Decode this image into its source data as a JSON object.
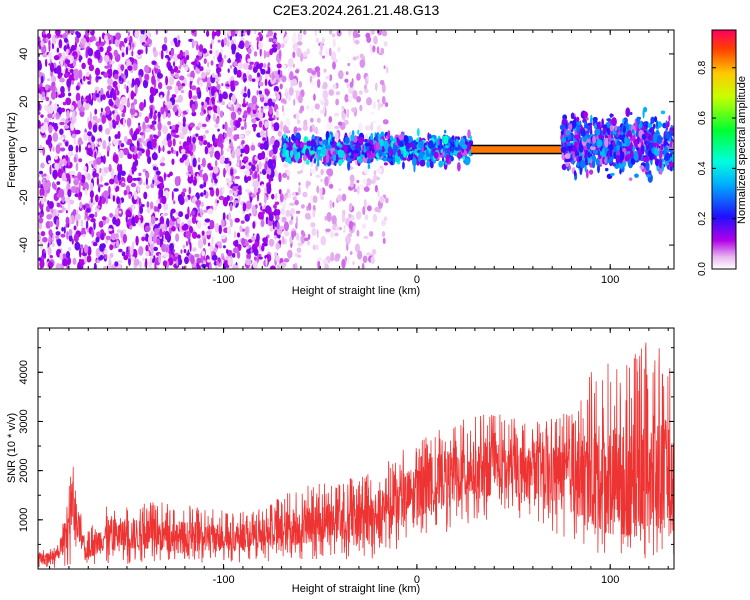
{
  "title": "C2E3.2024.261.21.48.G13",
  "colors": {
    "snr_line": "#ee3333",
    "axis": "#000000",
    "background": "#ffffff"
  },
  "chart_data": [
    {
      "type": "heatmap",
      "title": "C2E3.2024.261.21.48.G13",
      "xlabel": "Height of straight line (km)",
      "ylabel": "Frequency (Hz)",
      "xlim": [
        -196,
        133
      ],
      "ylim": [
        -50,
        50
      ],
      "xticks": [
        -100,
        0,
        100
      ],
      "yticks": [
        -40,
        -20,
        0,
        20,
        40
      ],
      "grid": false,
      "colorbar": {
        "label": "Normalized spectral amplitude",
        "range": [
          0,
          0.95
        ],
        "ticks": [
          0.0,
          0.2,
          0.4,
          0.6,
          0.8
        ],
        "tick_labels": [
          "0.0",
          "0.2",
          "0.4",
          "0.6",
          "0.8"
        ],
        "colormap": "rainbow (magenta → blue → cyan → green → yellow → red)",
        "position": "right"
      },
      "regions": [
        {
          "x_range": [
            -196,
            -70
          ],
          "description": "broadband noise",
          "freq_range": [
            -50,
            50
          ],
          "amplitude": 0.1
        },
        {
          "x_range": [
            -70,
            -15
          ],
          "description": "fading noise",
          "freq_range": [
            -50,
            50
          ],
          "amplitude": 0.05
        },
        {
          "x_range": [
            -70,
            28
          ],
          "description": "signal band near 0 Hz",
          "freq_range": [
            -5,
            5
          ],
          "amplitude": 0.25
        },
        {
          "x_range": [
            28,
            75
          ],
          "description": "strong carrier",
          "freq_range": [
            -1,
            1
          ],
          "amplitude": 0.95
        },
        {
          "x_range": [
            75,
            133
          ],
          "description": "broadened signal band",
          "freq_range": [
            -8,
            12
          ],
          "amplitude": 0.2
        }
      ]
    },
    {
      "type": "line",
      "xlabel": "Height of straight line (km)",
      "ylabel": "SNR (10 * v/v)",
      "xlim": [
        -196,
        133
      ],
      "ylim": [
        0,
        4900
      ],
      "xticks": [
        -100,
        0,
        100
      ],
      "yticks": [
        1000,
        2000,
        3000,
        4000
      ],
      "grid": false,
      "envelope": [
        {
          "x": -196,
          "low": 0,
          "high": 350,
          "mid": 200
        },
        {
          "x": -185,
          "low": 30,
          "high": 500,
          "mid": 300
        },
        {
          "x": -178,
          "low": 100,
          "high": 2150,
          "mid": 1200
        },
        {
          "x": -172,
          "low": 100,
          "high": 700,
          "mid": 350
        },
        {
          "x": -160,
          "low": 100,
          "high": 1300,
          "mid": 700
        },
        {
          "x": -140,
          "low": 100,
          "high": 1400,
          "mid": 700
        },
        {
          "x": -120,
          "low": 120,
          "high": 1300,
          "mid": 650
        },
        {
          "x": -100,
          "low": 120,
          "high": 1200,
          "mid": 650
        },
        {
          "x": -80,
          "low": 150,
          "high": 1250,
          "mid": 700
        },
        {
          "x": -60,
          "low": 200,
          "high": 1700,
          "mid": 900
        },
        {
          "x": -40,
          "low": 200,
          "high": 1800,
          "mid": 1000
        },
        {
          "x": -20,
          "low": 200,
          "high": 2100,
          "mid": 1100
        },
        {
          "x": 0,
          "low": 600,
          "high": 2600,
          "mid": 1600
        },
        {
          "x": 20,
          "low": 800,
          "high": 3000,
          "mid": 1900
        },
        {
          "x": 40,
          "low": 1000,
          "high": 3200,
          "mid": 2100
        },
        {
          "x": 60,
          "low": 900,
          "high": 3000,
          "mid": 2000
        },
        {
          "x": 75,
          "low": 600,
          "high": 3100,
          "mid": 1900
        },
        {
          "x": 90,
          "low": 300,
          "high": 4000,
          "mid": 1900
        },
        {
          "x": 100,
          "low": 200,
          "high": 4300,
          "mid": 1800
        },
        {
          "x": 115,
          "low": 200,
          "high": 4500,
          "mid": 1800
        },
        {
          "x": 125,
          "low": 200,
          "high": 4800,
          "mid": 1900
        },
        {
          "x": 133,
          "low": 300,
          "high": 4400,
          "mid": 1800
        }
      ]
    }
  ]
}
